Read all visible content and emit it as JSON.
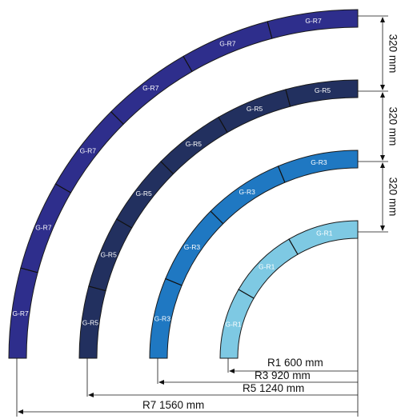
{
  "track_rings": [
    {
      "id": "r7",
      "color": "#2e2e8c",
      "segments": [
        "G-R7",
        "G-R7",
        "G-R7",
        "G-R7",
        "G-R7",
        "G-R7"
      ]
    },
    {
      "id": "r5",
      "color": "#22305f",
      "segments": [
        "G-R5",
        "G-R5",
        "G-R5",
        "G-R5",
        "G-R5",
        "G-R5"
      ]
    },
    {
      "id": "r3",
      "color": "#1f78c2",
      "segments": [
        "G-R3",
        "G-R3",
        "G-R3",
        "G-R3"
      ]
    },
    {
      "id": "r1",
      "color": "#7ec9e3",
      "segments": [
        "G-R1",
        "G-R1",
        "G-R1"
      ]
    }
  ],
  "spacing_labels": [
    "320 mm",
    "320 mm",
    "320 mm"
  ],
  "radius_labels": {
    "r1": "R1  600 mm",
    "r3": "R3  920 mm",
    "r5": "R5  1240 mm",
    "r7": "R7  1560 mm"
  }
}
